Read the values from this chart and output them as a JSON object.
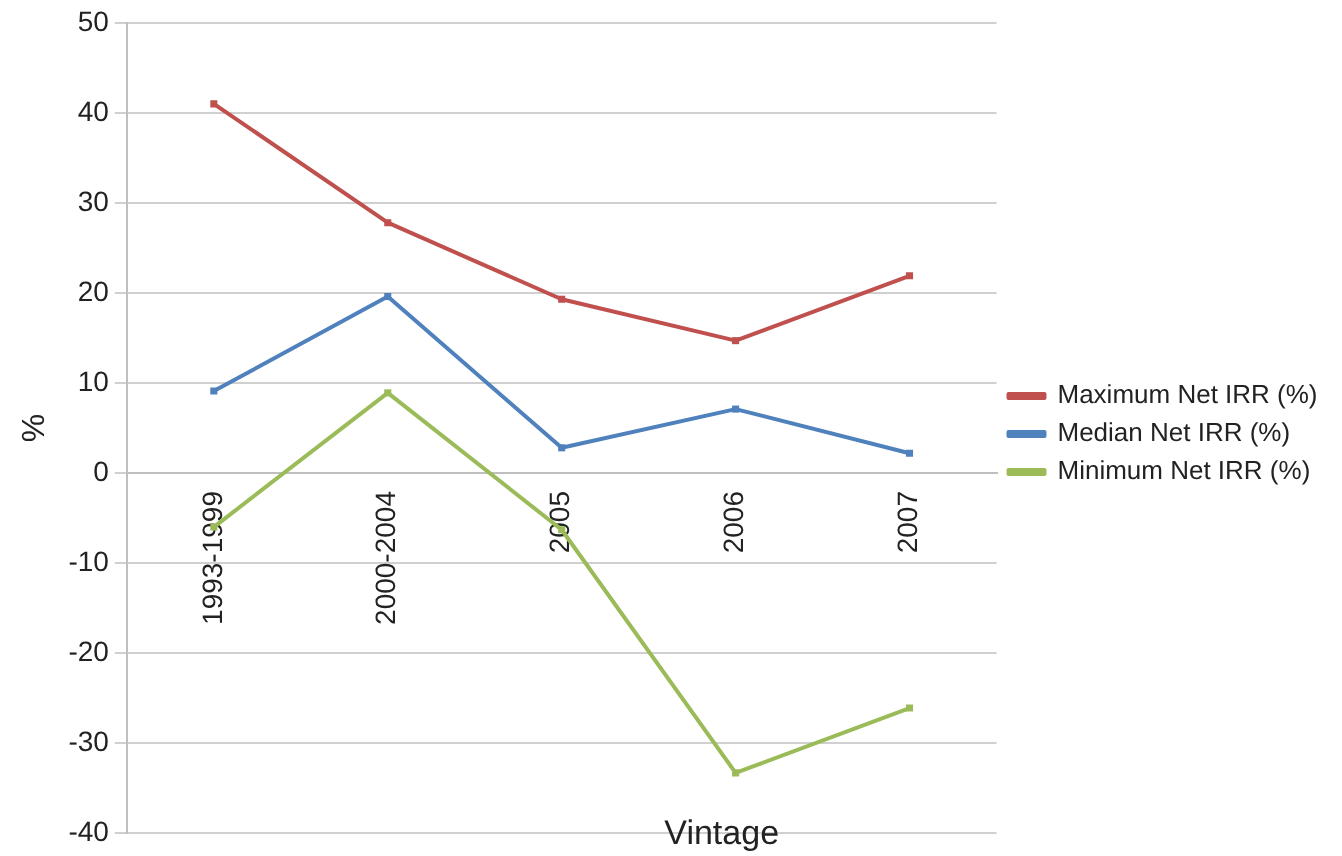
{
  "chart_data": {
    "type": "line",
    "xlabel": "Vintage",
    "ylabel": "%",
    "categories": [
      "1993-1999",
      "2000-2004",
      "2005",
      "2006",
      "2007"
    ],
    "series": [
      {
        "name": "Maximum Net IRR (%)",
        "color": "#c0504d",
        "values": [
          41,
          27.8,
          19.3,
          14.7,
          21.9
        ]
      },
      {
        "name": "Median Net IRR (%)",
        "color": "#4f81bd",
        "values": [
          9.1,
          19.6,
          2.8,
          7.1,
          2.2
        ]
      },
      {
        "name": "Minimum Net IRR (%)",
        "color": "#9bbb59",
        "values": [
          -6,
          8.9,
          -6.3,
          -33.3,
          -26.1
        ]
      }
    ],
    "ylim": [
      -40,
      50
    ],
    "yticks": [
      -40,
      -30,
      -20,
      -10,
      0,
      10,
      20,
      30,
      40,
      50
    ],
    "grid": "y",
    "legend": "right",
    "marker": "square",
    "line_style": "solid"
  }
}
